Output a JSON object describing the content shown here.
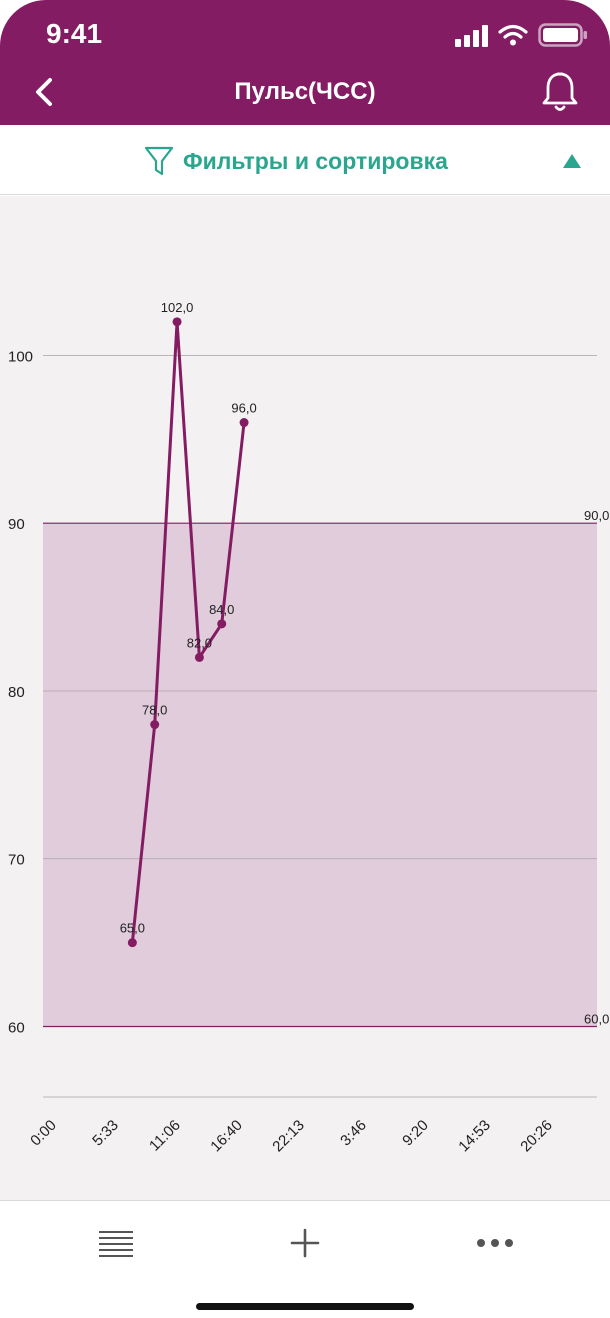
{
  "status_bar": {
    "time": "9:41"
  },
  "nav": {
    "title": "Пульс(ЧСС)"
  },
  "filter": {
    "label": "Фильтры и сортировка"
  },
  "colors": {
    "brand": "#831c62",
    "filter_accent": "#2aa68e",
    "series": "#831c62",
    "normal_band": "#e1ccdb",
    "chart_background": "#f3f1f2"
  },
  "icons": {
    "back": "chevron-left-icon",
    "bell": "bell-icon",
    "filter": "funnel-icon",
    "arrow": "triangle-up-icon",
    "list": "list-icon",
    "add": "plus-icon",
    "more": "more-dots-icon"
  },
  "chart_data": {
    "type": "line",
    "title": "",
    "xlabel": "",
    "ylabel": "",
    "x_ticks": [
      "0:00",
      "5:33",
      "11:06",
      "16:40",
      "22:13",
      "3:46",
      "9:20",
      "14:53",
      "20:26"
    ],
    "y_ticks": [
      "60",
      "70",
      "80",
      "90",
      "100"
    ],
    "ylim": [
      55.8,
      109.5
    ],
    "grid": "horizontal",
    "legend": "none",
    "series": [
      {
        "x": [
          "8:00",
          "10:00",
          "12:00",
          "14:00",
          "16:00",
          "18:00"
        ],
        "y": [
          65,
          78,
          102,
          82,
          84,
          96
        ],
        "labels": [
          "65,0",
          "78,0",
          "102,0",
          "82,0",
          "84,0",
          "96,0"
        ]
      }
    ],
    "reference_band": {
      "min": 60,
      "max": 90,
      "min_label": "60,0",
      "max_label": "90,0"
    }
  }
}
